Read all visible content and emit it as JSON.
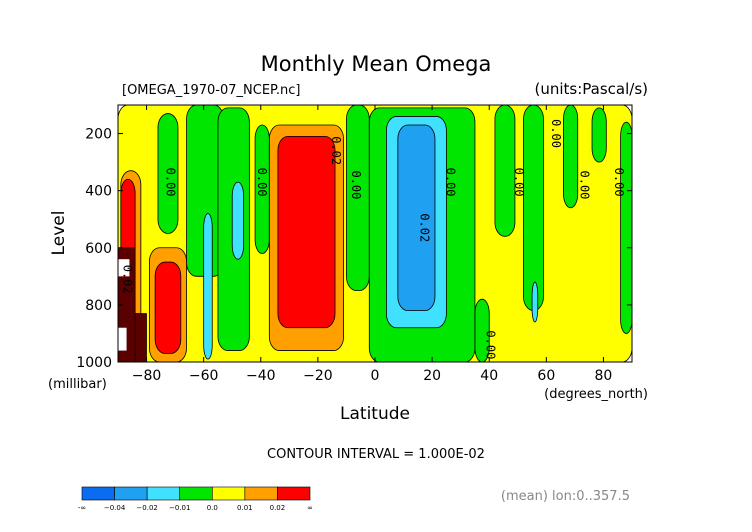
{
  "chart_data": {
    "type": "heatmap",
    "title": "Monthly Mean Omega",
    "source_file": "[OMEGA_1970-07_NCEP.nc]",
    "units": "(units:Pascal/s)",
    "xlabel": "Latitude",
    "x_unit_label": "(degrees_north)",
    "ylabel": "Level",
    "y_unit_label": "(millibar)",
    "xlim": [
      -90,
      90
    ],
    "ylim": [
      1000,
      100
    ],
    "x_ticks": [
      -80,
      -60,
      -40,
      -20,
      0,
      20,
      40,
      60,
      80
    ],
    "x_tick_labels": [
      "−80",
      "−60",
      "−40",
      "−20",
      "0",
      "20",
      "40",
      "60",
      "80"
    ],
    "y_ticks": [
      200,
      400,
      600,
      800,
      1000
    ],
    "y_tick_labels": [
      "200",
      "400",
      "600",
      "800",
      "1000"
    ],
    "contour_interval_label": "CONTOUR INTERVAL = 1.000E-02",
    "mean_label": "(mean) lon:0..357.5",
    "colorbar": {
      "colors": [
        "#0a6cf0",
        "#20a0f0",
        "#40e0ff",
        "#00e600",
        "#ffff00",
        "#ffa000",
        "#ff0000"
      ],
      "labels": [
        "-∞",
        "−0.04",
        "−0.02",
        "−0.01",
        "0.0",
        "0.01",
        "0.02",
        "∞"
      ]
    },
    "regions": [
      {
        "band": 4,
        "lat": [
          -90,
          90
        ],
        "lev": [
          100,
          1000
        ]
      },
      {
        "band": 3,
        "lat": [
          -76,
          -69
        ],
        "lev": [
          130,
          550
        ]
      },
      {
        "band": 3,
        "lat": [
          -66,
          -53
        ],
        "lev": [
          100,
          700
        ]
      },
      {
        "band": 2,
        "lat": [
          -60,
          -57
        ],
        "lev": [
          480,
          990
        ]
      },
      {
        "band": 3,
        "lat": [
          -55,
          -44
        ],
        "lev": [
          110,
          960
        ]
      },
      {
        "band": 2,
        "lat": [
          -50,
          -46
        ],
        "lev": [
          370,
          640
        ]
      },
      {
        "band": 3,
        "lat": [
          -42,
          -37
        ],
        "lev": [
          170,
          620
        ]
      },
      {
        "band": 5,
        "lat": [
          -37,
          -11
        ],
        "lev": [
          170,
          960
        ]
      },
      {
        "band": 6,
        "lat": [
          -34,
          -14
        ],
        "lev": [
          210,
          880
        ]
      },
      {
        "band": 5,
        "lat": [
          -89,
          -82
        ],
        "lev": [
          330,
          1000
        ]
      },
      {
        "band": 6,
        "lat": [
          -89,
          -84
        ],
        "lev": [
          360,
          1000
        ]
      },
      {
        "band": 5,
        "lat": [
          -79,
          -66
        ],
        "lev": [
          600,
          1000
        ]
      },
      {
        "band": 6,
        "lat": [
          -77,
          -68
        ],
        "lev": [
          650,
          970
        ]
      },
      {
        "band": 3,
        "lat": [
          -10,
          -2
        ],
        "lev": [
          100,
          750
        ]
      },
      {
        "band": 3,
        "lat": [
          -2,
          35
        ],
        "lev": [
          110,
          1000
        ]
      },
      {
        "band": 2,
        "lat": [
          4,
          25
        ],
        "lev": [
          140,
          880
        ]
      },
      {
        "band": 1,
        "lat": [
          8,
          21
        ],
        "lev": [
          170,
          820
        ]
      },
      {
        "band": 3,
        "lat": [
          42,
          49
        ],
        "lev": [
          100,
          560
        ]
      },
      {
        "band": 3,
        "lat": [
          52,
          59
        ],
        "lev": [
          100,
          820
        ]
      },
      {
        "band": 2,
        "lat": [
          55,
          57
        ],
        "lev": [
          720,
          860
        ]
      },
      {
        "band": 3,
        "lat": [
          66,
          71
        ],
        "lev": [
          100,
          460
        ]
      },
      {
        "band": 3,
        "lat": [
          76,
          81
        ],
        "lev": [
          110,
          300
        ]
      },
      {
        "band": 3,
        "lat": [
          86,
          90
        ],
        "lev": [
          160,
          900
        ]
      },
      {
        "band": 3,
        "lat": [
          35,
          40
        ],
        "lev": [
          780,
          1000
        ]
      }
    ],
    "dark_cells": [
      {
        "lat": [
          -90,
          -84
        ],
        "lev": [
          600,
          1000
        ]
      },
      {
        "lat": [
          -84,
          -80
        ],
        "lev": [
          830,
          1000
        ]
      }
    ],
    "missing_cells": [
      {
        "lat": [
          -90,
          -86
        ],
        "lev": [
          640,
          700
        ]
      },
      {
        "lat": [
          -90,
          -87
        ],
        "lev": [
          880,
          960
        ]
      }
    ],
    "contour_labels": [
      {
        "text": "0.00",
        "lat": -73,
        "lev": 370
      },
      {
        "text": "0.00",
        "lat": -41,
        "lev": 370
      },
      {
        "text": "0.02",
        "lat": -15,
        "lev": 260
      },
      {
        "text": "0.00",
        "lat": -8,
        "lev": 380
      },
      {
        "text": "0.00",
        "lat": 25,
        "lev": 370
      },
      {
        "text": "0.02",
        "lat": 16,
        "lev": 530
      },
      {
        "text": "0.00",
        "lat": 39,
        "lev": 940
      },
      {
        "text": "0.00",
        "lat": 49,
        "lev": 370
      },
      {
        "text": "0.00",
        "lat": 62,
        "lev": 200
      },
      {
        "text": "0.00",
        "lat": 72,
        "lev": 380
      },
      {
        "text": "0.00",
        "lat": 84,
        "lev": 370
      },
      {
        "text": "0.02",
        "lat": -88,
        "lev": 710
      }
    ]
  }
}
